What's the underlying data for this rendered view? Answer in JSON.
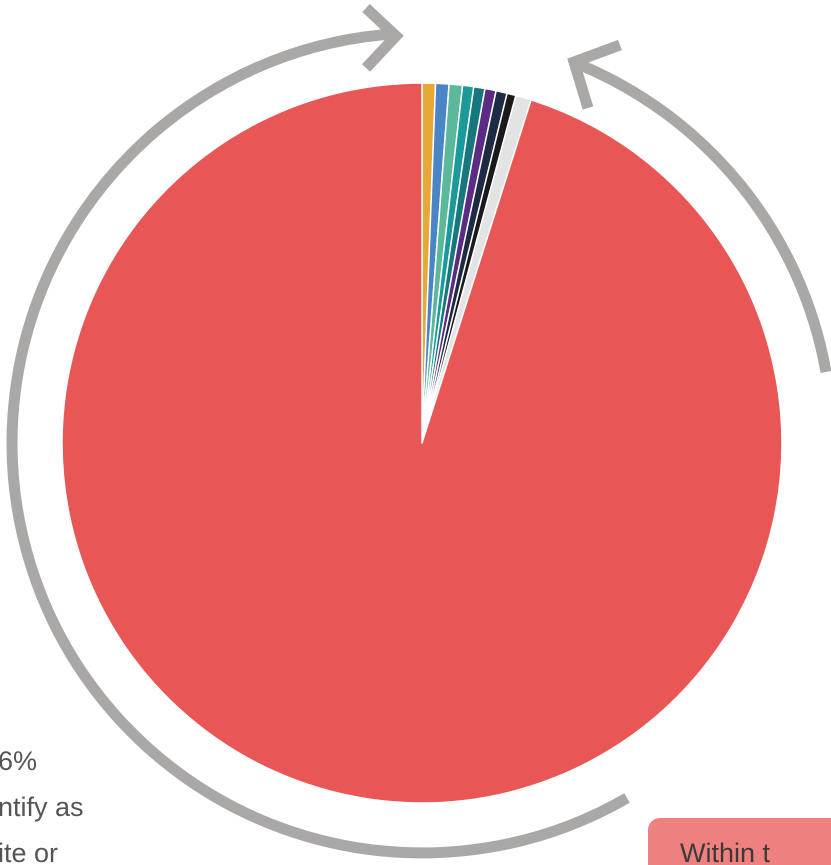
{
  "chart_data": {
    "type": "pie",
    "values": [
      0.6,
      0.6,
      0.6,
      0.5,
      0.5,
      0.5,
      0.5,
      0.4,
      0.7,
      95.1
    ],
    "colors": [
      "#e8a838",
      "#4a86c5",
      "#5cb89a",
      "#1a9a9a",
      "#16777e",
      "#5b2c83",
      "#1f2a44",
      "#1a1a1a",
      "#e3e3e3",
      "#e85656"
    ],
    "annotations": [
      "6%",
      "ntify as",
      "ite or"
    ],
    "callout": "Within t"
  }
}
